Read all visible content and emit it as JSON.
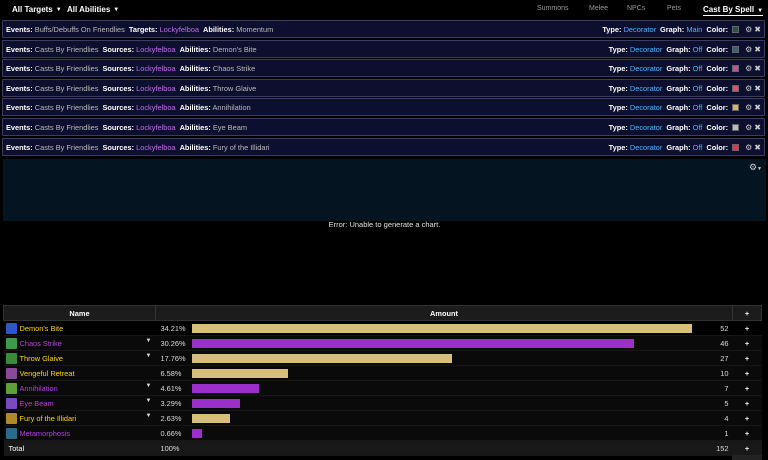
{
  "topbar": {
    "targets_label": "All Targets",
    "abilities_label": "All Abilities",
    "tabs": [
      {
        "label": "Summons"
      },
      {
        "label": "Melee"
      },
      {
        "label": "NPCs"
      },
      {
        "label": "Pets"
      },
      {
        "label": "Cast By Spell"
      }
    ]
  },
  "filters": [
    {
      "events_label": "Events:",
      "events": "Buffs/Debuffs On Friendlies",
      "source_label": "Targets:",
      "source": "Lockyfelboa",
      "abilities_label": "Abilities:",
      "ability": "Momentum",
      "type_label": "Type:",
      "type": "Decorator",
      "graph_label": "Graph:",
      "graph": "Main",
      "color_label": "Color:",
      "color": "#2f4f4f"
    },
    {
      "events_label": "Events:",
      "events": "Casts By Friendlies",
      "source_label": "Sources:",
      "source": "Lockyfelboa",
      "abilities_label": "Abilities:",
      "ability": "Demon's Bite",
      "type_label": "Type:",
      "type": "Decorator",
      "graph_label": "Graph:",
      "graph": "Off",
      "color_label": "Color:",
      "color": "#3b5f74"
    },
    {
      "events_label": "Events:",
      "events": "Casts By Friendlies",
      "source_label": "Sources:",
      "source": "Lockyfelboa",
      "abilities_label": "Abilities:",
      "ability": "Chaos Strike",
      "type_label": "Type:",
      "type": "Decorator",
      "graph_label": "Graph:",
      "graph": "Off",
      "color_label": "Color:",
      "color": "#c04fa8"
    },
    {
      "events_label": "Events:",
      "events": "Casts By Friendlies",
      "source_label": "Sources:",
      "source": "Lockyfelboa",
      "abilities_label": "Abilities:",
      "ability": "Throw Glaive",
      "type_label": "Type:",
      "type": "Decorator",
      "graph_label": "Graph:",
      "graph": "Off",
      "color_label": "Color:",
      "color": "#e0506e"
    },
    {
      "events_label": "Events:",
      "events": "Casts By Friendlies",
      "source_label": "Sources:",
      "source": "Lockyfelboa",
      "abilities_label": "Abilities:",
      "ability": "Annihilation",
      "type_label": "Type:",
      "type": "Decorator",
      "graph_label": "Graph:",
      "graph": "Off",
      "color_label": "Color:",
      "color": "#d9b070"
    },
    {
      "events_label": "Events:",
      "events": "Casts By Friendlies",
      "source_label": "Sources:",
      "source": "Lockyfelboa",
      "abilities_label": "Abilities:",
      "ability": "Eye Beam",
      "type_label": "Type:",
      "type": "Decorator",
      "graph_label": "Graph:",
      "graph": "Off",
      "color_label": "Color:",
      "color": "#b8b8c0"
    },
    {
      "events_label": "Events:",
      "events": "Casts By Friendlies",
      "source_label": "Sources:",
      "source": "Lockyfelboa",
      "abilities_label": "Abilities:",
      "ability": "Fury of the Illidari",
      "type_label": "Type:",
      "type": "Decorator",
      "graph_label": "Graph:",
      "graph": "Off",
      "color_label": "Color:",
      "color": "#e6324e"
    }
  ],
  "chart": {
    "error": "Error: Unable to generate a chart."
  },
  "table": {
    "headers": {
      "name": "Name",
      "amount": "Amount",
      "plus": "+"
    },
    "rows": [
      {
        "name": "Demon's Bite",
        "pct": "34.21%",
        "count": "52",
        "fraction": 0.3421,
        "name_color": "#ffd700",
        "bar_color": "#d7bf7b",
        "icon_color": "#2d57c9",
        "expandable": false
      },
      {
        "name": "Chaos Strike",
        "pct": "30.26%",
        "count": "46",
        "fraction": 0.3026,
        "name_color": "#b23fe0",
        "bar_color": "#9b2fc9",
        "icon_color": "#3c9a4a",
        "expandable": true
      },
      {
        "name": "Throw Glaive",
        "pct": "17.76%",
        "count": "27",
        "fraction": 0.1776,
        "name_color": "#ffd700",
        "bar_color": "#d7bf7b",
        "icon_color": "#3a8a3a",
        "expandable": true
      },
      {
        "name": "Vengeful Retreat",
        "pct": "6.58%",
        "count": "10",
        "fraction": 0.0658,
        "name_color": "#ffd700",
        "bar_color": "#d7bf7b",
        "icon_color": "#8a4a9c",
        "expandable": false
      },
      {
        "name": "Annihilation",
        "pct": "4.61%",
        "count": "7",
        "fraction": 0.0461,
        "name_color": "#b23fe0",
        "bar_color": "#9b2fc9",
        "icon_color": "#5fa03a",
        "expandable": true
      },
      {
        "name": "Eye Beam",
        "pct": "3.29%",
        "count": "5",
        "fraction": 0.0329,
        "name_color": "#b23fe0",
        "bar_color": "#9b2fc9",
        "icon_color": "#7a4ac0",
        "expandable": true
      },
      {
        "name": "Fury of the Illidari",
        "pct": "2.63%",
        "count": "4",
        "fraction": 0.0263,
        "name_color": "#ffd700",
        "bar_color": "#d7bf7b",
        "icon_color": "#b08a2a",
        "expandable": true
      },
      {
        "name": "Metamorphosis",
        "pct": "0.66%",
        "count": "1",
        "fraction": 0.0066,
        "name_color": "#b23fe0",
        "bar_color": "#9b2fc9",
        "icon_color": "#2a6a8a",
        "expandable": false
      }
    ],
    "total": {
      "label": "Total",
      "pct": "100%",
      "count": "152"
    }
  }
}
